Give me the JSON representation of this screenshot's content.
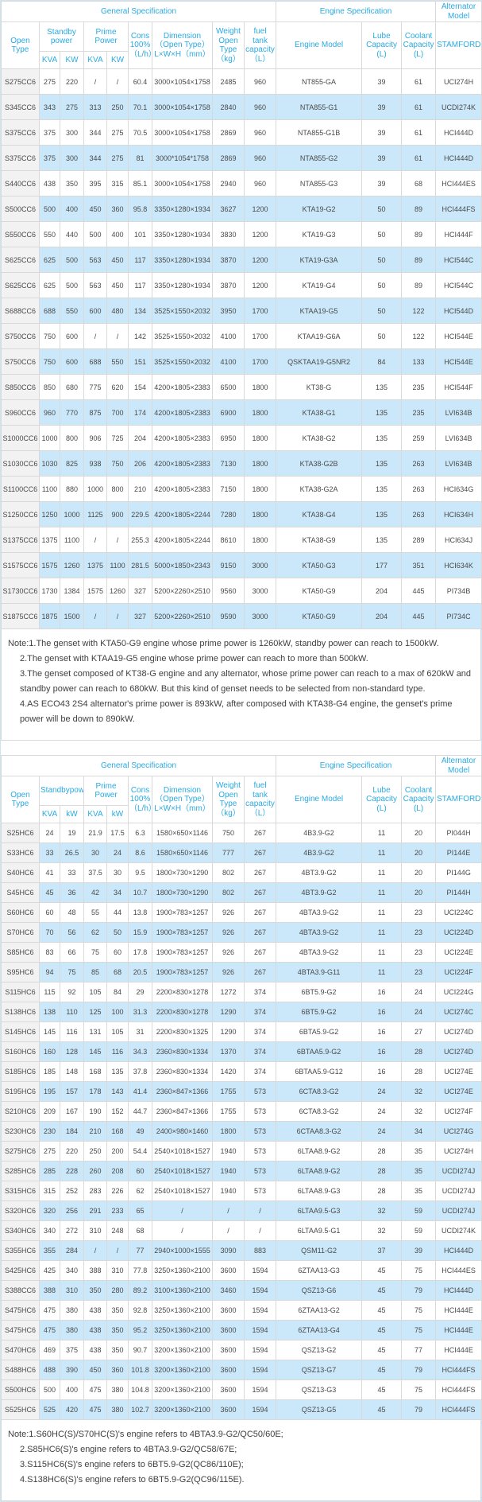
{
  "colors": {
    "accent_cyan": "#29abe2",
    "row_alt_blue": "#cbe8fa",
    "first_col_gray": "#f2f2f2",
    "border_gray": "#d9d9d9"
  },
  "tables": [
    {
      "header": {
        "general": "General Specification",
        "engine": "Engine Specification",
        "alternator": "Alternator\nModel",
        "open_type": "Open Type",
        "standby": "Standby\npower",
        "prime": "Prime Power",
        "kva1": "KVA",
        "kw1": "KW",
        "kva2": "KVA",
        "kw2": "KW",
        "cons": "Cons\n100%\n（L/h）",
        "dimension": "Dimension\n（Open Type）\nL×W×H（mm）",
        "weight": "Weight\nOpen Type\n（kg）",
        "fuel": "fuel tank\ncapacity\n（L）",
        "engine_model": "Engine Model",
        "lube": "Lube\nCapacity\n(L)",
        "coolant": "Coolant\nCapacity\n(L)",
        "stamford": "STAMFORD"
      },
      "rows": [
        [
          "S275CC6",
          "275",
          "220",
          "/",
          "/",
          "60.4",
          "3000×1054×1758",
          "2485",
          "960",
          "NT855-GA",
          "39",
          "61",
          "UCI274H"
        ],
        [
          "S345CC6",
          "343",
          "275",
          "313",
          "250",
          "70.1",
          "3000×1054×1758",
          "2840",
          "960",
          "NTA855-G1",
          "39",
          "61",
          "UCDI274K"
        ],
        [
          "S375CC6",
          "375",
          "300",
          "344",
          "275",
          "70.5",
          "3000×1054×1758",
          "2869",
          "960",
          "NTA855-G1B",
          "39",
          "61",
          "HCI444D"
        ],
        [
          "S375CC6",
          "375",
          "300",
          "344",
          "275",
          "81",
          "3000*1054*1758",
          "2869",
          "960",
          "NTA855-G2",
          "39",
          "61",
          "HCI444D"
        ],
        [
          "S440CC6",
          "438",
          "350",
          "395",
          "315",
          "85.1",
          "3000×1054×1758",
          "2940",
          "960",
          "NTA855-G3",
          "39",
          "68",
          "HCI444ES"
        ],
        [
          "S500CC6",
          "500",
          "400",
          "450",
          "360",
          "95.8",
          "3350×1280×1934",
          "3627",
          "1200",
          "KTA19-G2",
          "50",
          "89",
          "HCI444FS"
        ],
        [
          "S550CC6",
          "550",
          "440",
          "500",
          "400",
          "101",
          "3350×1280×1934",
          "3830",
          "1200",
          "KTA19-G3",
          "50",
          "89",
          "HCI444F"
        ],
        [
          "S625CC6",
          "625",
          "500",
          "563",
          "450",
          "117",
          "3350×1280×1934",
          "3870",
          "1200",
          "KTA19-G3A",
          "50",
          "89",
          "HCI544C"
        ],
        [
          "S625CC6",
          "625",
          "500",
          "563",
          "450",
          "117",
          "3350×1280×1934",
          "3870",
          "1200",
          "KTA19-G4",
          "50",
          "89",
          "HCI544C"
        ],
        [
          "S688CC6",
          "688",
          "550",
          "600",
          "480",
          "134",
          "3525×1550×2032",
          "3950",
          "1700",
          "KTAA19-G5",
          "50",
          "122",
          "HCI544D"
        ],
        [
          "S750CC6",
          "750",
          "600",
          "/",
          "/",
          "142",
          "3525×1550×2032",
          "4100",
          "1700",
          "KTAA19-G6A",
          "50",
          "122",
          "HCI544E"
        ],
        [
          "S750CC6",
          "750",
          "600",
          "688",
          "550",
          "151",
          "3525×1550×2032",
          "4100",
          "1700",
          "QSKTAA19-G5NR2",
          "84",
          "133",
          "HCI544E"
        ],
        [
          "S850CC6",
          "850",
          "680",
          "775",
          "620",
          "154",
          "4200×1805×2383",
          "6500",
          "1800",
          "KT38-G",
          "135",
          "235",
          "HCI544F"
        ],
        [
          "S960CC6",
          "960",
          "770",
          "875",
          "700",
          "174",
          "4200×1805×2383",
          "6900",
          "1800",
          "KTA38-G1",
          "135",
          "235",
          "LVI634B"
        ],
        [
          "S1000CC6",
          "1000",
          "800",
          "906",
          "725",
          "204",
          "4200×1805×2383",
          "6950",
          "1800",
          "KTA38-G2",
          "135",
          "259",
          "LVI634B"
        ],
        [
          "S1030CC6",
          "1030",
          "825",
          "938",
          "750",
          "206",
          "4200×1805×2383",
          "7130",
          "1800",
          "KTA38-G2B",
          "135",
          "263",
          "LVI634B"
        ],
        [
          "S1100CC6",
          "1100",
          "880",
          "1000",
          "800",
          "210",
          "4200×1805×2383",
          "7150",
          "1800",
          "KTA38-G2A",
          "135",
          "263",
          "HCI634G"
        ],
        [
          "S1250CC6",
          "1250",
          "1000",
          "1125",
          "900",
          "229.5",
          "4200×1805×2244",
          "7280",
          "1800",
          "KTA38-G4",
          "135",
          "263",
          "HCI634H"
        ],
        [
          "S1375CC6",
          "1375",
          "1100",
          "/",
          "/",
          "255.3",
          "4200×1805×2244",
          "8610",
          "1800",
          "KTA38-G9",
          "135",
          "289",
          "HCI634J"
        ],
        [
          "S1575CC6",
          "1575",
          "1260",
          "1375",
          "1100",
          "281.5",
          "5000×1850×2343",
          "9150",
          "3000",
          "KTA50-G3",
          "177",
          "351",
          "HCI634K"
        ],
        [
          "S1730CC6",
          "1730",
          "1384",
          "1575",
          "1260",
          "327",
          "5200×2260×2510",
          "9560",
          "3000",
          "KTA50-G9",
          "204",
          "445",
          "PI734B"
        ],
        [
          "S1875CC6",
          "1875",
          "1500",
          "/",
          "/",
          "327",
          "5200×2260×2510",
          "9590",
          "3000",
          "KTA50-G9",
          "204",
          "445",
          "PI734C"
        ]
      ],
      "note_lines": [
        {
          "text": "Note:1.The genset with KTA50-G9 engine whose prime power is 1260kW, standby power can reach to 1500kW.",
          "indent": false
        },
        {
          "text": "2.The genset with KTAA19-G5 engine whose prime power can reach to more than 500kW.",
          "indent": true
        },
        {
          "text": "3.The genset composed of KT38-G engine and any alternator, whose prime power can reach to a max of 620kW and standby power can reach to 680kW. But this kind of genset needs to be selected from non-standard type.",
          "indent": true
        },
        {
          "text": "4.AS ECO43 2S4 alternator's prime power is 893kW, after composed with KTA38-G4 engine, the genset's prime power will be down to 890kW.",
          "indent": true
        }
      ]
    },
    {
      "header": {
        "general": "General Specification",
        "engine": "Engine Specification",
        "alternator": "Alternator\nModel",
        "open_type": "Open Type",
        "standby": "Standbypower",
        "prime": "Prime Power",
        "kva1": "KVA",
        "kw1": "kW",
        "kva2": "KVA",
        "kw2": "kW",
        "cons": "Cons\n100%\n（L/h）",
        "dimension": "Dimension\n（Open Type）\nL×W×H（mm）",
        "weight": "Weight\nOpen Type\n（kg）",
        "fuel": "fuel tank\ncapacity\n（L）",
        "engine_model": "Engine Model",
        "lube": "Lube\nCapacity\n(L)",
        "coolant": "Coolant\nCapacity\n(L)",
        "stamford": "STAMFORD"
      },
      "rows": [
        [
          "S25HC6",
          "24",
          "19",
          "21.9",
          "17.5",
          "6.3",
          "1580×650×1146",
          "750",
          "267",
          "4B3.9-G2",
          "11",
          "20",
          "PI044H"
        ],
        [
          "S33HC6",
          "33",
          "26.5",
          "30",
          "24",
          "8.6",
          "1580×650×1146",
          "777",
          "267",
          "4B3.9-G2",
          "11",
          "20",
          "PI144E"
        ],
        [
          "S40HC6",
          "41",
          "33",
          "37.5",
          "30",
          "9.5",
          "1800×730×1290",
          "802",
          "267",
          "4BT3.9-G2",
          "11",
          "20",
          "PI144G"
        ],
        [
          "S45HC6",
          "45",
          "36",
          "42",
          "34",
          "10.7",
          "1800×730×1290",
          "802",
          "267",
          "4BT3.9-G2",
          "11",
          "20",
          "PI144H"
        ],
        [
          "S60HC6",
          "60",
          "48",
          "55",
          "44",
          "13.8",
          "1900×783×1257",
          "926",
          "267",
          "4BTA3.9-G2",
          "11",
          "23",
          "UCI224C"
        ],
        [
          "S70HC6",
          "70",
          "56",
          "62",
          "50",
          "15.9",
          "1900×783×1257",
          "926",
          "267",
          "4BTA3.9-G2",
          "11",
          "23",
          "UCI224D"
        ],
        [
          "S85HC6",
          "83",
          "66",
          "75",
          "60",
          "17.8",
          "1900×783×1257",
          "926",
          "267",
          "4BTA3.9-G2",
          "11",
          "23",
          "UCI224E"
        ],
        [
          "S95HC6",
          "94",
          "75",
          "85",
          "68",
          "20.5",
          "1900×783×1257",
          "926",
          "267",
          "4BTA3.9-G11",
          "11",
          "23",
          "UCI224F"
        ],
        [
          "S115HC6",
          "115",
          "92",
          "105",
          "84",
          "29",
          "2200×830×1278",
          "1272",
          "374",
          "6BT5.9-G2",
          "16",
          "24",
          "UCI224G"
        ],
        [
          "S138HC6",
          "138",
          "110",
          "125",
          "100",
          "31.3",
          "2200×830×1278",
          "1290",
          "374",
          "6BT5.9-G2",
          "16",
          "24",
          "UCI274C"
        ],
        [
          "S145HC6",
          "145",
          "116",
          "131",
          "105",
          "31",
          "2200×830×1325",
          "1290",
          "374",
          "6BTA5.9-G2",
          "16",
          "27",
          "UCI274D"
        ],
        [
          "S160HC6",
          "160",
          "128",
          "145",
          "116",
          "34.3",
          "2360×830×1334",
          "1370",
          "374",
          "6BTAA5.9-G2",
          "16",
          "28",
          "UCI274D"
        ],
        [
          "S185HC6",
          "185",
          "148",
          "168",
          "135",
          "37.8",
          "2360×830×1334",
          "1420",
          "374",
          "6BTAA5.9-G12",
          "16",
          "28",
          "UCI274E"
        ],
        [
          "S195HC6",
          "195",
          "157",
          "178",
          "143",
          "41.4",
          "2360×847×1366",
          "1755",
          "573",
          "6CTA8.3-G2",
          "24",
          "32",
          "UCI274E"
        ],
        [
          "S210HC6",
          "209",
          "167",
          "190",
          "152",
          "44.7",
          "2360×847×1366",
          "1755",
          "573",
          "6CTA8.3-G2",
          "24",
          "32",
          "UCI274F"
        ],
        [
          "S230HC6",
          "230",
          "184",
          "210",
          "168",
          "49",
          "2400×980×1460",
          "1800",
          "573",
          "6CTAA8.3-G2",
          "24",
          "34",
          "UCI274G"
        ],
        [
          "S275HC6",
          "275",
          "220",
          "250",
          "200",
          "54.4",
          "2540×1018×1527",
          "1940",
          "573",
          "6LTAA8.9-G2",
          "28",
          "35",
          "UCI274H"
        ],
        [
          "S285HC6",
          "285",
          "228",
          "260",
          "208",
          "60",
          "2540×1018×1527",
          "1940",
          "573",
          "6LTAA8.9-G2",
          "28",
          "35",
          "UCDI274J"
        ],
        [
          "S315HC6",
          "315",
          "252",
          "283",
          "226",
          "62",
          "2540×1018×1527",
          "1940",
          "573",
          "6LTAA8.9-G3",
          "28",
          "35",
          "UCDI274J"
        ],
        [
          "S320HC6",
          "320",
          "256",
          "291",
          "233",
          "65",
          "/",
          "/",
          "/",
          "6LTAA9.5-G3",
          "32",
          "59",
          "UCDI274J"
        ],
        [
          "S340HC6",
          "340",
          "272",
          "310",
          "248",
          "68",
          "/",
          "/",
          "/",
          "6LTAA9.5-G1",
          "32",
          "59",
          "UCDI274K"
        ],
        [
          "S355HC6",
          "355",
          "284",
          "/",
          "/",
          "77",
          "2940×1000×1555",
          "3090",
          "883",
          "QSM11-G2",
          "37",
          "39",
          "HCI444D"
        ],
        [
          "S425HC6",
          "425",
          "340",
          "388",
          "310",
          "77.8",
          "3250×1360×2100",
          "3600",
          "1594",
          "6ZTAA13-G3",
          "45",
          "75",
          "HCI444ES"
        ],
        [
          "S388CC6",
          "388",
          "310",
          "350",
          "280",
          "89.2",
          "3100×1360×2100",
          "3460",
          "1594",
          "QSZ13-G6",
          "45",
          "79",
          "HCI444D"
        ],
        [
          "S475HC6",
          "475",
          "380",
          "438",
          "350",
          "92.8",
          "3250×1360×2100",
          "3600",
          "1594",
          "6ZTAA13-G2",
          "45",
          "75",
          "HCI444E"
        ],
        [
          "S475HC6",
          "475",
          "380",
          "438",
          "350",
          "95.2",
          "3250×1360×2100",
          "3600",
          "1594",
          "6ZTAA13-G4",
          "45",
          "75",
          "HCI444E"
        ],
        [
          "S470HC6",
          "469",
          "375",
          "438",
          "350",
          "90.7",
          "3200×1360×2100",
          "3600",
          "1594",
          "QSZ13-G2",
          "45",
          "77",
          "HCI444E"
        ],
        [
          "S488HC6",
          "488",
          "390",
          "450",
          "360",
          "101.8",
          "3200×1360×2100",
          "3600",
          "1594",
          "QSZ13-G7",
          "45",
          "79",
          "HCI444FS"
        ],
        [
          "S500HC6",
          "500",
          "400",
          "475",
          "380",
          "104.8",
          "3200×1360×2100",
          "3600",
          "1594",
          "QSZ13-G3",
          "45",
          "75",
          "HCI444FS"
        ],
        [
          "S525HC6",
          "525",
          "420",
          "475",
          "380",
          "102.7",
          "3200×1360×2100",
          "3600",
          "1594",
          "QSZ13-G5",
          "45",
          "79",
          "HCI444FS"
        ]
      ],
      "note_lines": [
        {
          "text": "Note:1.S60HC(S)/S70HC(S)'s engine refers to 4BTA3.9-G2/QC50/60E;",
          "indent": false
        },
        {
          "text": "2.S85HC6(S)'s engine refers to 4BTA3.9-G2/QC58/67E;",
          "indent": true
        },
        {
          "text": "3.S115HC6(S)'s engine refers to 6BT5.9-G2(QC86/110E);",
          "indent": true
        },
        {
          "text": "4.S138HC6(S)'s engine refers to 6BT5.9-G2(QC96/115E).",
          "indent": true
        }
      ]
    }
  ]
}
